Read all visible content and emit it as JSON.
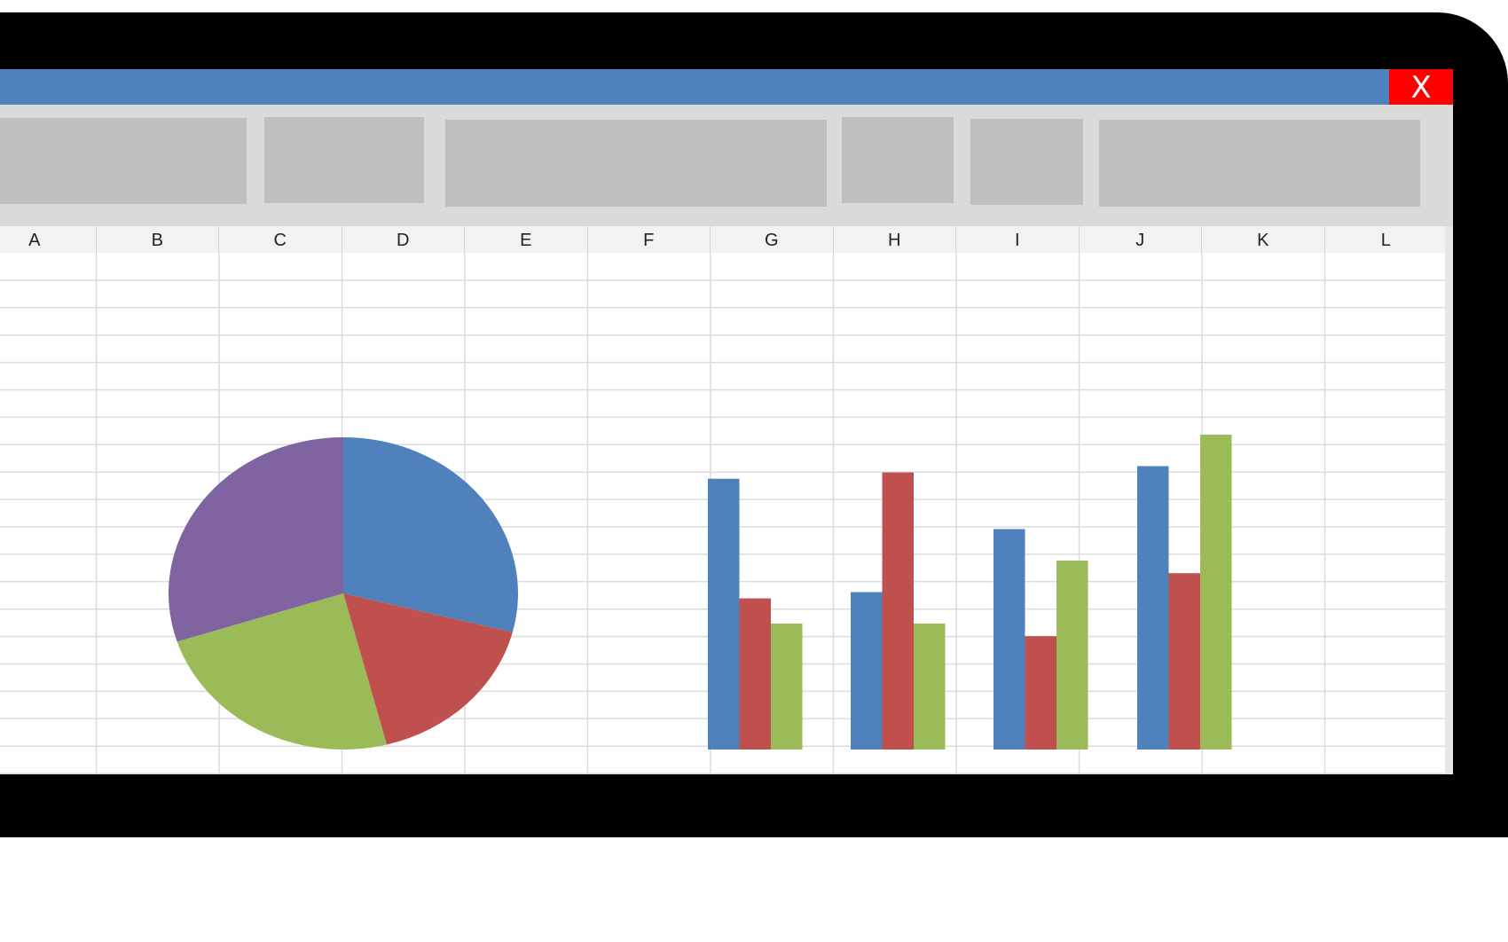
{
  "window": {
    "close_label": "X"
  },
  "colors": {
    "titlebar": "#4f81bd",
    "close": "#ff0000",
    "blue": "#4f81bd",
    "red": "#c0504d",
    "green": "#9bbb59",
    "purple": "#8064a2"
  },
  "ribbon": {
    "icons": [
      "ribbon-group-1",
      "ribbon-group-2",
      "ribbon-group-3",
      "ribbon-group-4",
      "ribbon-group-5",
      "ribbon-group-6"
    ]
  },
  "sheet": {
    "columns": [
      "A",
      "B",
      "C",
      "D",
      "E",
      "F",
      "G",
      "H",
      "I",
      "J",
      "K",
      "L"
    ]
  },
  "chart_data": [
    {
      "type": "pie",
      "slices": [
        {
          "value": 29,
          "color": "#4f81bd"
        },
        {
          "value": 17,
          "color": "#c0504d"
        },
        {
          "value": 24,
          "color": "#9bbb59"
        },
        {
          "value": 30,
          "color": "#8064a2"
        }
      ]
    },
    {
      "type": "bar",
      "categories": [
        "",
        "",
        "",
        ""
      ],
      "ylim": [
        0,
        100
      ],
      "grid": true,
      "series": [
        {
          "color": "#4f81bd",
          "values": [
            86,
            50,
            70,
            90
          ]
        },
        {
          "color": "#c0504d",
          "values": [
            48,
            88,
            36,
            56
          ]
        },
        {
          "color": "#9bbb59",
          "values": [
            40,
            40,
            60,
            100
          ]
        }
      ]
    }
  ]
}
